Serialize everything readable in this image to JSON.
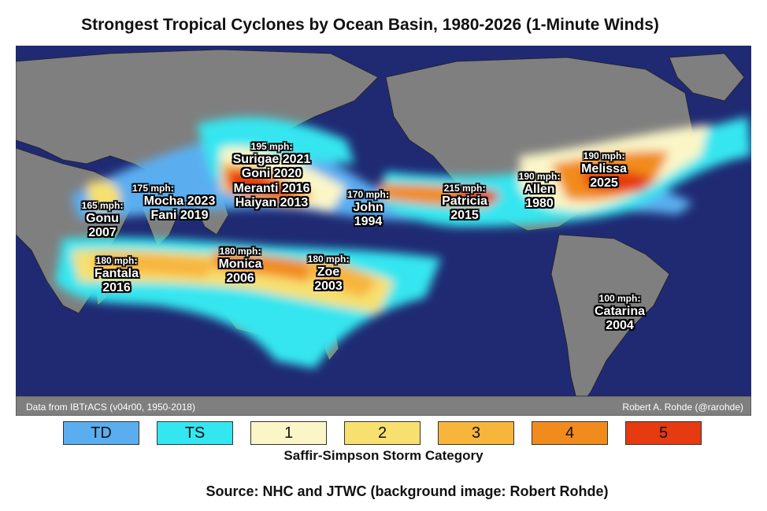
{
  "title": "Strongest Tropical Cyclones by Ocean Basin, 1980-2026 (1-Minute Winds)",
  "credits": {
    "data": "Data from IBTrACS (v04r00, 1950-2018)",
    "author": "Robert A. Rohde (@rarohde)"
  },
  "storms": [
    {
      "mph": "165 mph:",
      "name": "Gonu\n2007"
    },
    {
      "mph": "175 mph:",
      "name": "Mocha 2023\nFani 2019"
    },
    {
      "mph": "195 mph:",
      "name": "Surigae 2021\nGoni 2020\nMeranti 2016\nHaiyan 2013"
    },
    {
      "mph": "170 mph:",
      "name": "John\n1994"
    },
    {
      "mph": "215 mph:",
      "name": "Patricia\n2015"
    },
    {
      "mph": "190 mph:",
      "name": "Allen\n1980"
    },
    {
      "mph": "190 mph:",
      "name": "Melissa\n2025"
    },
    {
      "mph": "180 mph:",
      "name": "Fantala\n2016"
    },
    {
      "mph": "180 mph:",
      "name": "Monica\n2006"
    },
    {
      "mph": "180 mph:",
      "name": "Zoe\n2003"
    },
    {
      "mph": "100 mph:",
      "name": "Catarina\n2004"
    }
  ],
  "legend": {
    "items": [
      {
        "label": "TD",
        "color": "#5aaef0"
      },
      {
        "label": "TS",
        "color": "#34e6f0"
      },
      {
        "label": "1",
        "color": "#fbf6c8"
      },
      {
        "label": "2",
        "color": "#f7e070"
      },
      {
        "label": "3",
        "color": "#f7b53c"
      },
      {
        "label": "4",
        "color": "#f28b1e"
      },
      {
        "label": "5",
        "color": "#e63a10"
      }
    ],
    "caption": "Saffir-Simpson Storm Category"
  },
  "source": "Source: NHC and JTWC (background image: Robert Rohde)",
  "colors": {
    "ocean": "#1f2a73",
    "land": "#7f7f7f"
  }
}
